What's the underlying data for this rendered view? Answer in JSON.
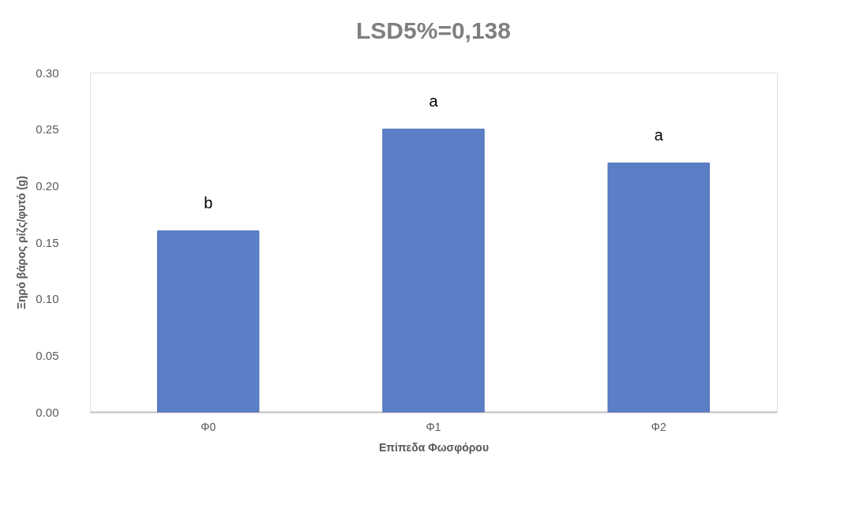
{
  "chart_data": {
    "type": "bar",
    "title": "LSD5%=0,138",
    "xlabel": "Επίπεδα Φωσφόρου",
    "ylabel": "Ξηρό βάρος ρίζς/φυτό (g)",
    "categories": [
      "Φ0",
      "Φ1",
      "Φ2"
    ],
    "values": [
      0.16,
      0.25,
      0.22
    ],
    "color": "#5b7fc7",
    "ylim": [
      0,
      0.3
    ],
    "yticks": [
      {
        "value": 0,
        "label": "0.00"
      },
      {
        "value": 0.05,
        "label": "0.05"
      },
      {
        "value": 0.1,
        "label": "0.10"
      },
      {
        "value": 0.15,
        "label": "0.15"
      },
      {
        "value": 0.2,
        "label": "0.20"
      },
      {
        "value": 0.25,
        "label": "0.25"
      },
      {
        "value": 0.3,
        "label": "0.30"
      }
    ],
    "grid": false,
    "value_labels": [
      "b",
      "a",
      "a"
    ]
  }
}
